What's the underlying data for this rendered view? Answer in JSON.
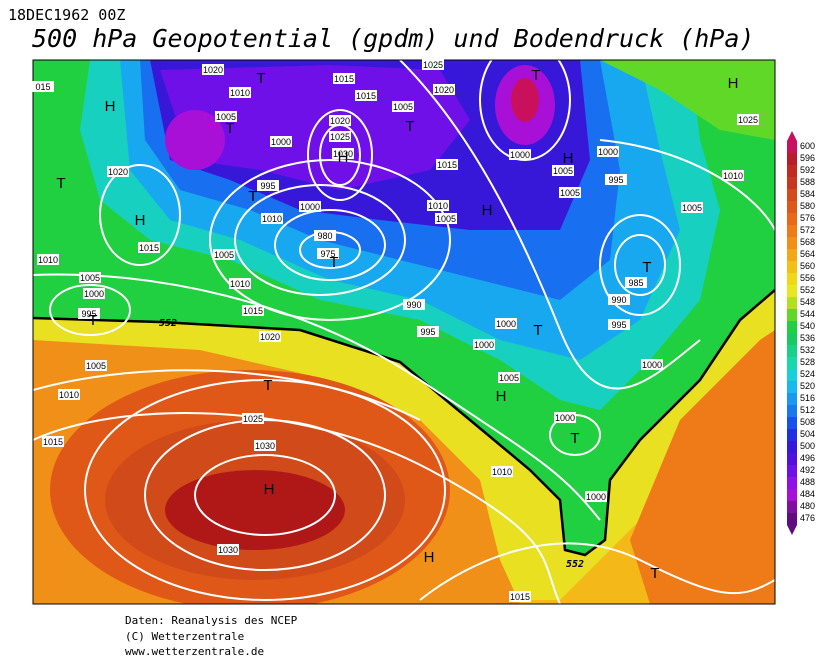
{
  "header": {
    "date": "18DEC1962 00Z",
    "title": "500 hPa Geopotential (gpdm) und Bodendruck (hPa)"
  },
  "colorbar": {
    "levels": [
      600,
      596,
      592,
      588,
      584,
      580,
      576,
      572,
      568,
      564,
      560,
      556,
      552,
      548,
      544,
      540,
      536,
      532,
      528,
      524,
      520,
      516,
      512,
      508,
      504,
      500,
      496,
      492,
      488,
      484,
      480,
      476
    ],
    "colors": [
      "#c8105c",
      "#b81c2c",
      "#c02a20",
      "#c83820",
      "#d44a1c",
      "#e05818",
      "#e86818",
      "#ee7a18",
      "#f09018",
      "#f4a818",
      "#f4c018",
      "#f0d818",
      "#e8e820",
      "#b0e020",
      "#60d828",
      "#20d040",
      "#18c860",
      "#18d088",
      "#18d8b0",
      "#18d0d8",
      "#18b8f0",
      "#1898f0",
      "#1878f0",
      "#1850f0",
      "#2030e0",
      "#3818d8",
      "#5010e0",
      "#7010e8",
      "#9010e8",
      "#a810d8",
      "#8010a0",
      "#600c80"
    ]
  },
  "contour_label": "552",
  "pressure_centers": [
    "H",
    "H",
    "H",
    "H",
    "H",
    "H",
    "H",
    "H",
    "H",
    "T",
    "T",
    "T",
    "T",
    "T",
    "T",
    "T",
    "T",
    "T",
    "T",
    "T",
    "T",
    "T"
  ],
  "isobar_labels": [
    "015",
    "1020",
    "1010",
    "1005",
    "1000",
    "995",
    "1010",
    "1020",
    "1025",
    "1030",
    "1015",
    "1015",
    "1005",
    "1020",
    "1025",
    "1015",
    "1010",
    "1005",
    "1000",
    "1005",
    "1005",
    "1000",
    "995",
    "1005",
    "1010",
    "1025",
    "985",
    "990",
    "995",
    "1000",
    "1020",
    "1015",
    "1005",
    "1010",
    "1005",
    "1000",
    "995",
    "1010",
    "1015",
    "1020",
    "990",
    "995",
    "1000",
    "1000",
    "1005",
    "1005",
    "1010",
    "1015",
    "1025",
    "1030",
    "1030",
    "1010",
    "1000",
    "1000",
    "1015",
    "980",
    "975",
    "1000"
  ],
  "footer": [
    "Daten: Reanalysis des NCEP",
    "(C) Wetterzentrale",
    "www.wetterzentrale.de"
  ]
}
